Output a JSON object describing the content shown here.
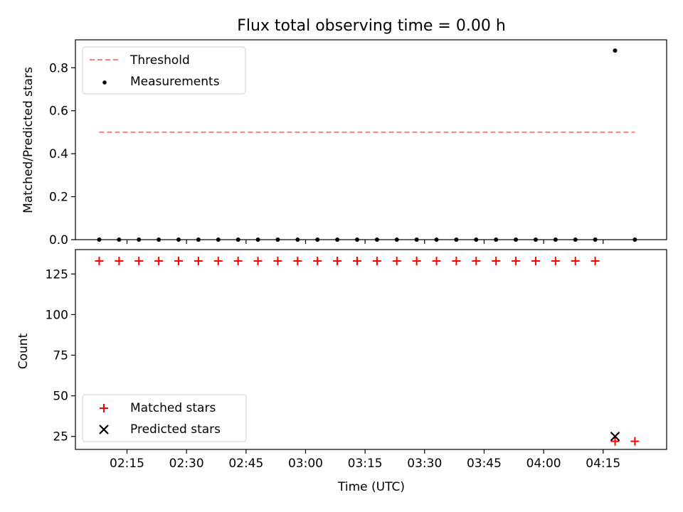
{
  "chart_data": [
    {
      "type": "scatter",
      "title": "Flux total observing time = 0.00 h",
      "xlabel": "",
      "ylabel": "Matched/Predicted stars",
      "ylim": [
        0,
        0.93
      ],
      "yticks": [
        0.0,
        0.2,
        0.4,
        0.6,
        0.8
      ],
      "ytick_labels": [
        "0.0",
        "0.2",
        "0.4",
        "0.6",
        "0.8"
      ],
      "legend_position": "top-left",
      "threshold": {
        "name": "Threshold",
        "value": 0.5,
        "color": "#ff7f7f",
        "x_start": "02:08",
        "x_end": "04:23"
      },
      "series": [
        {
          "name": "Measurements",
          "color": "#000000",
          "points": [
            [
              "02:08",
              0
            ],
            [
              "02:13",
              0
            ],
            [
              "02:18",
              0
            ],
            [
              "02:23",
              0
            ],
            [
              "02:28",
              0
            ],
            [
              "02:33",
              0
            ],
            [
              "02:38",
              0
            ],
            [
              "02:43",
              0
            ],
            [
              "02:48",
              0
            ],
            [
              "02:53",
              0
            ],
            [
              "02:58",
              0
            ],
            [
              "03:03",
              0
            ],
            [
              "03:08",
              0
            ],
            [
              "03:13",
              0
            ],
            [
              "03:18",
              0
            ],
            [
              "03:23",
              0
            ],
            [
              "03:28",
              0
            ],
            [
              "03:33",
              0
            ],
            [
              "03:38",
              0
            ],
            [
              "03:43",
              0
            ],
            [
              "03:48",
              0
            ],
            [
              "03:53",
              0
            ],
            [
              "03:58",
              0
            ],
            [
              "04:03",
              0
            ],
            [
              "04:08",
              0
            ],
            [
              "04:13",
              0
            ],
            [
              "04:18",
              0.88
            ],
            [
              "04:23",
              0
            ]
          ]
        }
      ]
    },
    {
      "type": "scatter",
      "title": "",
      "xlabel": "Time (UTC)",
      "ylabel": "Count",
      "ylim": [
        17,
        140
      ],
      "yticks": [
        25,
        50,
        75,
        100,
        125
      ],
      "ytick_labels": [
        "25",
        "50",
        "75",
        "100",
        "125"
      ],
      "xlim": [
        "02:02",
        "04:31"
      ],
      "xticks": [
        "02:15",
        "02:30",
        "02:45",
        "03:00",
        "03:15",
        "03:30",
        "03:45",
        "04:00",
        "04:15"
      ],
      "xtick_labels": [
        "02:15",
        "02:30",
        "02:45",
        "03:00",
        "03:15",
        "03:30",
        "03:45",
        "04:00",
        "04:15"
      ],
      "legend_position": "bottom-left",
      "series": [
        {
          "name": "Matched stars",
          "marker": "plus",
          "color": "#ff0000",
          "points": [
            [
              "02:08",
              133
            ],
            [
              "02:13",
              133
            ],
            [
              "02:18",
              133
            ],
            [
              "02:23",
              133
            ],
            [
              "02:28",
              133
            ],
            [
              "02:33",
              133
            ],
            [
              "02:38",
              133
            ],
            [
              "02:43",
              133
            ],
            [
              "02:48",
              133
            ],
            [
              "02:53",
              133
            ],
            [
              "02:58",
              133
            ],
            [
              "03:03",
              133
            ],
            [
              "03:08",
              133
            ],
            [
              "03:13",
              133
            ],
            [
              "03:18",
              133
            ],
            [
              "03:23",
              133
            ],
            [
              "03:28",
              133
            ],
            [
              "03:33",
              133
            ],
            [
              "03:38",
              133
            ],
            [
              "03:43",
              133
            ],
            [
              "03:48",
              133
            ],
            [
              "03:53",
              133
            ],
            [
              "03:58",
              133
            ],
            [
              "04:03",
              133
            ],
            [
              "04:08",
              133
            ],
            [
              "04:13",
              133
            ],
            [
              "04:18",
              22
            ],
            [
              "04:23",
              22
            ]
          ]
        },
        {
          "name": "Predicted stars",
          "marker": "x",
          "color": "#000000",
          "points": [
            [
              "04:18",
              25
            ]
          ]
        }
      ]
    }
  ]
}
